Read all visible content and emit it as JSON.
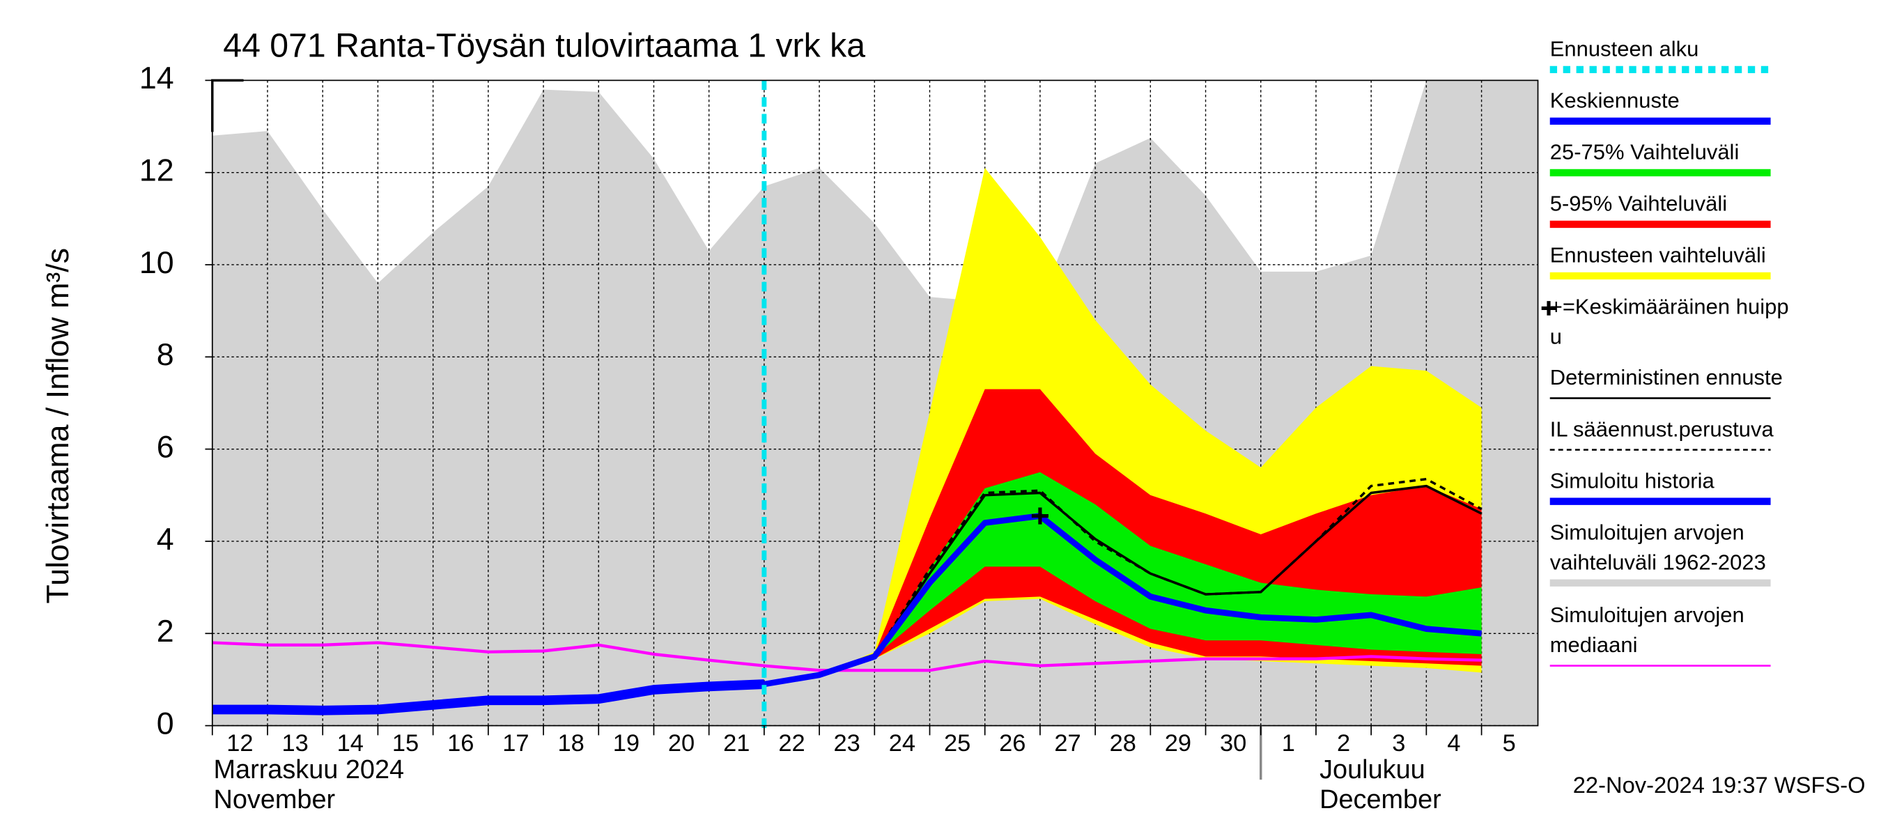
{
  "chart_data": {
    "type": "line",
    "title": "44 071 Ranta-Töysän tulovirtaama 1 vrk ka",
    "y_label": "Tulovirtaama / Inflow   m³/s",
    "months": [
      {
        "fi": "Marraskuu 2024",
        "en": "November"
      },
      {
        "fi": "Joulukuu",
        "en": "December"
      }
    ],
    "footer": "22-Nov-2024 19:37 WSFS-O",
    "categories": [
      "12",
      "13",
      "14",
      "15",
      "16",
      "17",
      "18",
      "19",
      "20",
      "21",
      "22",
      "23",
      "24",
      "25",
      "26",
      "27",
      "28",
      "29",
      "30",
      "1",
      "2",
      "3",
      "4",
      "5"
    ],
    "ylim": [
      0,
      14
    ],
    "yticks": [
      0,
      2,
      4,
      6,
      8,
      10,
      12,
      14
    ],
    "grid": true,
    "sim_range": {
      "color": "#d3d3d3",
      "upper": [
        12.8,
        12.9,
        11.2,
        9.6,
        10.7,
        11.7,
        13.8,
        13.75,
        12.3,
        10.3,
        11.7,
        12.1,
        10.9,
        9.3,
        9.2,
        9.15,
        12.2,
        12.75,
        11.5,
        9.85,
        9.85,
        10.2,
        14,
        14
      ]
    },
    "bands": [
      {
        "color": "#ffff00",
        "lower": [
          null,
          null,
          null,
          null,
          null,
          null,
          null,
          null,
          null,
          null,
          null,
          1.1,
          1.45,
          2.0,
          2.7,
          2.75,
          2.2,
          1.7,
          1.45,
          1.4,
          1.35,
          1.3,
          1.25,
          1.15
        ],
        "upper": [
          null,
          null,
          null,
          null,
          null,
          null,
          null,
          null,
          null,
          null,
          null,
          1.1,
          1.6,
          6.8,
          12.1,
          10.6,
          8.8,
          7.4,
          6.4,
          5.6,
          6.9,
          7.8,
          7.7,
          6.9
        ]
      },
      {
        "color": "#ff0000",
        "lower": [
          null,
          null,
          null,
          null,
          null,
          null,
          null,
          null,
          null,
          null,
          null,
          1.1,
          1.45,
          2.1,
          2.75,
          2.8,
          2.3,
          1.8,
          1.5,
          1.5,
          1.45,
          1.4,
          1.35,
          1.3
        ],
        "upper": [
          null,
          null,
          null,
          null,
          null,
          null,
          null,
          null,
          null,
          null,
          null,
          1.1,
          1.55,
          4.5,
          7.3,
          7.3,
          5.9,
          5.0,
          4.6,
          4.15,
          4.6,
          5.0,
          5.2,
          4.7
        ]
      },
      {
        "color": "#00ee00",
        "lower": [
          null,
          null,
          null,
          null,
          null,
          null,
          null,
          null,
          null,
          null,
          null,
          1.1,
          1.5,
          2.5,
          3.45,
          3.45,
          2.7,
          2.1,
          1.85,
          1.85,
          1.75,
          1.65,
          1.6,
          1.55
        ],
        "upper": [
          null,
          null,
          null,
          null,
          null,
          null,
          null,
          null,
          null,
          null,
          null,
          1.1,
          1.5,
          3.4,
          5.15,
          5.5,
          4.8,
          3.9,
          3.5,
          3.1,
          2.95,
          2.85,
          2.8,
          3.0
        ]
      }
    ],
    "series": [
      {
        "color": "#ff00ff",
        "width": 2.5,
        "values": [
          1.8,
          1.75,
          1.75,
          1.8,
          1.7,
          1.6,
          1.62,
          1.75,
          1.55,
          1.42,
          1.3,
          1.2,
          1.2,
          1.2,
          1.4,
          1.3,
          1.35,
          1.4,
          1.45,
          1.45,
          1.45,
          1.5,
          1.45,
          1.42
        ]
      },
      {
        "color": "#000000",
        "width": 2,
        "values": [
          null,
          null,
          null,
          null,
          null,
          null,
          null,
          null,
          null,
          null,
          null,
          1.1,
          1.5,
          3.3,
          5.0,
          5.05,
          4.05,
          3.3,
          2.85,
          2.9,
          4.0,
          5.05,
          5.2,
          4.6
        ]
      },
      {
        "color": "#000000",
        "width": 2,
        "dash": true,
        "values": [
          null,
          null,
          null,
          null,
          null,
          null,
          null,
          null,
          null,
          null,
          null,
          1.1,
          1.5,
          3.4,
          5.05,
          5.1,
          4.0,
          3.3,
          2.85,
          2.9,
          4.0,
          5.2,
          5.35,
          4.7
        ]
      },
      {
        "color": "#0000ff",
        "width": 8,
        "values": [
          0.35,
          0.35,
          0.33,
          0.35,
          0.45,
          0.55,
          0.55,
          0.58,
          0.78,
          0.85,
          0.9,
          null,
          null,
          null,
          null,
          null,
          null,
          null,
          null,
          null,
          null,
          null,
          null,
          null
        ]
      },
      {
        "color": "#0000ff",
        "width": 5,
        "values": [
          null,
          null,
          null,
          null,
          null,
          null,
          null,
          null,
          null,
          null,
          0.9,
          1.1,
          1.5,
          3.1,
          4.4,
          4.55,
          3.6,
          2.8,
          2.5,
          2.35,
          2.3,
          2.4,
          2.1,
          2.0
        ]
      }
    ],
    "peak_marker": {
      "category": "27",
      "value": 4.55
    },
    "legend": [
      {
        "lines": [
          "Ennusteen alku"
        ],
        "color": "#00e5ee",
        "style": "dot"
      },
      {
        "lines": [
          "Keskiennuste"
        ],
        "color": "#0000ff",
        "style": "thick"
      },
      {
        "lines": [
          "25-75% Vaihteluväli"
        ],
        "color": "#00ee00",
        "style": "thick"
      },
      {
        "lines": [
          "5-95% Vaihteluväli"
        ],
        "color": "#ff0000",
        "style": "thick"
      },
      {
        "lines": [
          "Ennusteen vaihteluväli"
        ],
        "color": "#ffff00",
        "style": "thick"
      },
      {
        "lines": [
          "+=Keskimääräinen huipp",
          "u"
        ],
        "color": null,
        "style": "none"
      },
      {
        "lines": [
          "Deterministinen ennuste"
        ],
        "color": "#000000",
        "style": "thin"
      },
      {
        "lines": [
          "IL sääennust.perustuva"
        ],
        "color": "#000000",
        "style": "dash"
      },
      {
        "lines": [
          "Simuloitu historia"
        ],
        "color": "#0000ff",
        "style": "thick"
      },
      {
        "lines": [
          "Simuloitujen arvojen",
          "vaihteluväli 1962-2023"
        ],
        "color": "#d3d3d3",
        "style": "thick"
      },
      {
        "lines": [
          "Simuloitujen arvojen",
          "mediaani"
        ],
        "color": "#ff00ff",
        "style": "thin"
      }
    ]
  }
}
